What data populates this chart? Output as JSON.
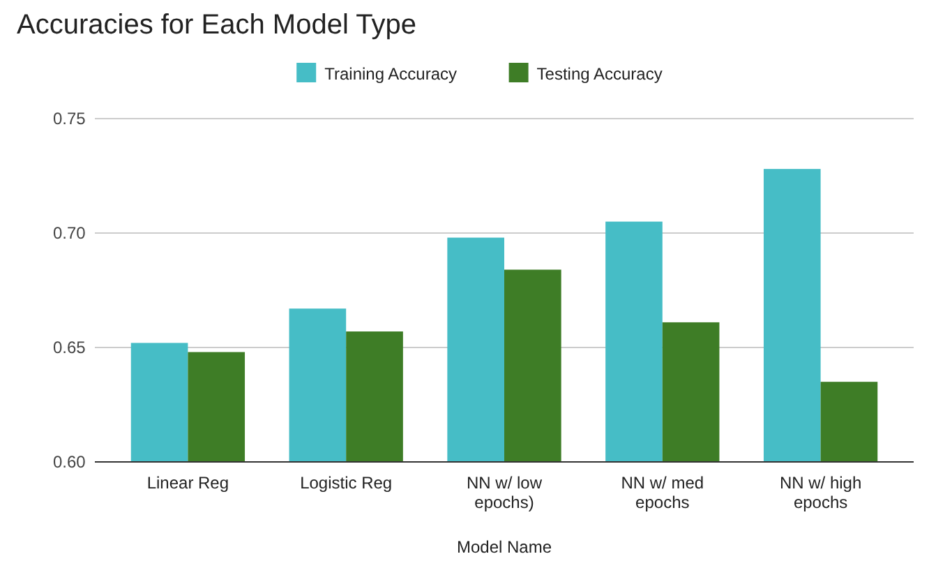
{
  "chart_data": {
    "type": "bar",
    "title": "Accuracies for Each Model Type",
    "xlabel": "Model Name",
    "categories": [
      "Linear Reg",
      "Logistic Reg",
      "NN w/ low epochs)",
      "NN w/ med epochs",
      "NN w/ high epochs"
    ],
    "series": [
      {
        "name": "Training Accuracy",
        "color": "#46bdc6",
        "values": [
          0.652,
          0.667,
          0.698,
          0.705,
          0.728
        ]
      },
      {
        "name": "Testing Accuracy",
        "color": "#3e7d26",
        "values": [
          0.648,
          0.657,
          0.684,
          0.661,
          0.635
        ]
      }
    ],
    "ylim": [
      0.6,
      0.75
    ],
    "yticks": [
      {
        "value": 0.6,
        "label": "0.60"
      },
      {
        "value": 0.65,
        "label": "0.65"
      },
      {
        "value": 0.7,
        "label": "0.70"
      },
      {
        "value": 0.75,
        "label": "0.75"
      }
    ],
    "grid": "y",
    "legend": "top"
  }
}
